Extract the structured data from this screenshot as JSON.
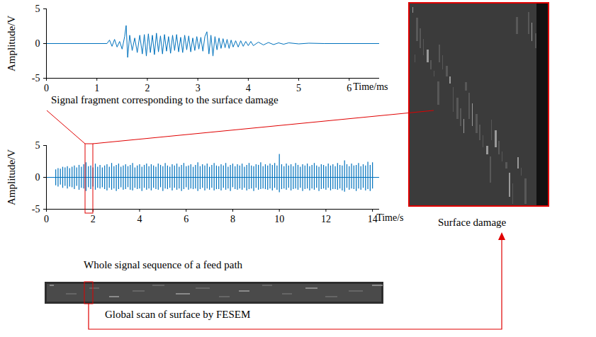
{
  "chart_data": [
    {
      "type": "line",
      "caption": "Signal fragment corresponding to the surface damage",
      "x_label": "Time/ms",
      "y_label": "Amplitude/V",
      "color": "#0072bd",
      "xlim": [
        0,
        6.6
      ],
      "xticks": [
        0,
        1,
        2,
        3,
        4,
        5,
        6
      ],
      "ylim": [
        -5,
        5
      ],
      "yticks": [
        -5,
        0,
        5
      ],
      "x": [
        0,
        1.2,
        1.25,
        1.3,
        1.35,
        1.4,
        1.45,
        1.5,
        1.55,
        1.58,
        1.61,
        1.65,
        1.7,
        1.75,
        1.8,
        1.85,
        1.9,
        1.94,
        1.98,
        2.02,
        2.06,
        2.1,
        2.14,
        2.18,
        2.22,
        2.26,
        2.3,
        2.34,
        2.38,
        2.42,
        2.46,
        2.5,
        2.54,
        2.58,
        2.62,
        2.66,
        2.7,
        2.74,
        2.78,
        2.82,
        2.86,
        2.9,
        2.94,
        2.98,
        3.02,
        3.06,
        3.1,
        3.14,
        3.18,
        3.22,
        3.26,
        3.3,
        3.34,
        3.38,
        3.42,
        3.46,
        3.5,
        3.54,
        3.58,
        3.62,
        3.66,
        3.7,
        3.75,
        3.8,
        3.85,
        3.9,
        3.95,
        4.0,
        4.05,
        4.1,
        4.2,
        4.3,
        4.4,
        4.5,
        4.6,
        4.7,
        4.8,
        5.0,
        5.2,
        5.5,
        6.6
      ],
      "values": [
        0,
        0,
        0.5,
        -0.4,
        0.6,
        -0.5,
        0.3,
        -0.8,
        1.0,
        2.6,
        -2.0,
        1.2,
        -1.0,
        0.8,
        -1.3,
        1.2,
        -1.5,
        1.3,
        -1.8,
        1.4,
        -1.3,
        1.2,
        -1.6,
        1.5,
        -1.2,
        1.1,
        -1.5,
        1.3,
        -1.1,
        1.0,
        -1.4,
        1.2,
        -1.0,
        1.3,
        -1.2,
        0.9,
        -1.3,
        1.2,
        -0.9,
        1.1,
        -1.2,
        0.8,
        -1.0,
        1.0,
        -0.8,
        0.9,
        -1.1,
        1.0,
        1.7,
        -1.5,
        1.2,
        -1.8,
        1.0,
        -0.9,
        0.8,
        -0.7,
        0.7,
        -0.6,
        0.6,
        -0.7,
        0.5,
        -0.5,
        0.4,
        -0.5,
        0.4,
        -0.4,
        0.3,
        -0.3,
        0.3,
        -0.3,
        0.2,
        -0.2,
        0.15,
        -0.15,
        0.1,
        -0.1,
        0.1,
        -0.05,
        0.05,
        0,
        0
      ]
    },
    {
      "type": "spikes",
      "caption": "Whole signal sequence of a feed path",
      "x_label": "Time/s",
      "y_label": "Amplitude/V",
      "color": "#0072bd",
      "xlim": [
        0,
        14.3
      ],
      "xticks": [
        0,
        2,
        4,
        6,
        8,
        10,
        12,
        14
      ],
      "ylim": [
        -5,
        5
      ],
      "yticks": [
        -5,
        0,
        5
      ],
      "x": [
        0.4,
        0.5,
        0.6,
        0.7,
        0.8,
        0.9,
        1.0,
        1.1,
        1.2,
        1.3,
        1.4,
        1.5,
        1.6,
        1.7,
        1.8,
        1.9,
        2.0,
        2.1,
        2.2,
        2.3,
        2.4,
        2.5,
        2.6,
        2.7,
        2.8,
        2.9,
        3.0,
        3.1,
        3.2,
        3.3,
        3.4,
        3.5,
        3.6,
        3.7,
        3.8,
        3.9,
        4.0,
        4.1,
        4.2,
        4.3,
        4.4,
        4.5,
        4.6,
        4.7,
        4.8,
        4.9,
        5.0,
        5.1,
        5.2,
        5.3,
        5.4,
        5.5,
        5.6,
        5.7,
        5.8,
        5.9,
        6.0,
        6.1,
        6.2,
        6.3,
        6.4,
        6.5,
        6.6,
        6.7,
        6.8,
        6.9,
        7.0,
        7.1,
        7.2,
        7.3,
        7.4,
        7.5,
        7.6,
        7.7,
        7.8,
        7.9,
        8.0,
        8.1,
        8.2,
        8.3,
        8.4,
        8.5,
        8.6,
        8.7,
        8.8,
        8.9,
        9.0,
        9.1,
        9.2,
        9.3,
        9.4,
        9.5,
        9.6,
        9.7,
        9.8,
        9.9,
        10.0,
        10.1,
        10.2,
        10.3,
        10.4,
        10.5,
        10.6,
        10.7,
        10.8,
        10.9,
        11.0,
        11.1,
        11.2,
        11.3,
        11.4,
        11.5,
        11.6,
        11.7,
        11.8,
        11.9,
        12.0,
        12.1,
        12.2,
        12.3,
        12.4,
        12.5,
        12.6,
        12.7,
        12.8,
        12.9,
        13.0,
        13.1,
        13.2,
        13.3,
        13.4,
        13.5,
        13.6,
        13.7,
        13.8,
        13.9,
        14.0
      ],
      "ymax": [
        1.2,
        1.4,
        1.3,
        1.6,
        1.5,
        1.7,
        1.4,
        1.6,
        1.8,
        1.5,
        1.9,
        1.6,
        2.0,
        2.3,
        1.7,
        1.8,
        1.5,
        2.1,
        1.6,
        1.9,
        1.5,
        1.8,
        2.0,
        1.6,
        2.2,
        1.7,
        1.9,
        2.1,
        1.6,
        1.8,
        2.0,
        1.7,
        1.9,
        2.2,
        1.5,
        1.8,
        2.0,
        1.6,
        1.9,
        2.1,
        1.7,
        2.0,
        1.8,
        1.6,
        2.1,
        1.9,
        1.7,
        2.2,
        1.8,
        1.6,
        2.0,
        1.8,
        2.1,
        1.6,
        1.9,
        2.2,
        1.7,
        1.8,
        2.0,
        1.6,
        1.9,
        2.3,
        1.7,
        2.0,
        1.8,
        2.1,
        1.6,
        1.9,
        2.2,
        1.8,
        1.7,
        2.0,
        1.8,
        2.2,
        1.6,
        1.9,
        2.1,
        1.7,
        2.0,
        1.8,
        2.1,
        1.6,
        1.9,
        2.2,
        1.8,
        1.7,
        2.0,
        1.9,
        2.3,
        1.7,
        2.0,
        1.8,
        2.1,
        1.9,
        2.2,
        1.8,
        3.6,
        2.0,
        1.7,
        2.1,
        1.8,
        2.0,
        1.7,
        2.2,
        1.9,
        1.6,
        2.0,
        1.8,
        2.1,
        1.7,
        1.9,
        2.2,
        1.8,
        1.6,
        2.0,
        1.9,
        1.7,
        2.1,
        1.8,
        2.0,
        1.7,
        2.2,
        1.9,
        1.8,
        2.6,
        2.0,
        1.7,
        2.1,
        1.8,
        1.9,
        2.2,
        1.7,
        2.0,
        1.8,
        2.4,
        1.9,
        2.3
      ],
      "ymin": [
        -1.3,
        -1.5,
        -1.2,
        -1.7,
        -1.4,
        -1.8,
        -1.5,
        -1.6,
        -1.9,
        -1.4,
        -2.0,
        -1.7,
        -1.8,
        -2.2,
        -1.6,
        -1.9,
        -1.5,
        -2.0,
        -1.7,
        -1.8,
        -1.6,
        -1.9,
        -2.1,
        -1.7,
        -2.0,
        -1.8,
        -2.2,
        -1.9,
        -1.6,
        -2.0,
        -1.9,
        -1.6,
        -2.0,
        -2.1,
        -1.7,
        -1.9,
        -1.8,
        -2.2,
        -1.7,
        -2.0,
        -1.8,
        -2.1,
        -1.7,
        -1.9,
        -2.0,
        -1.6,
        -2.2,
        -1.8,
        -1.9,
        -1.7,
        -2.1,
        -1.7,
        -2.0,
        -1.8,
        -2.2,
        -1.9,
        -1.6,
        -2.0,
        -1.8,
        -1.9,
        -1.8,
        -2.2,
        -1.9,
        -1.7,
        -2.1,
        -1.8,
        -2.0,
        -1.7,
        -2.1,
        -1.9,
        -1.9,
        -2.1,
        -1.7,
        -2.0,
        -1.8,
        -2.2,
        -1.6,
        -1.9,
        -2.0,
        -1.8,
        -2.0,
        -1.7,
        -2.1,
        -1.9,
        -1.8,
        -2.2,
        -1.7,
        -2.0,
        -1.9,
        -1.8,
        -1.9,
        -2.0,
        -1.8,
        -2.1,
        -1.7,
        -2.0,
        -2.4,
        -1.9,
        -1.8,
        -2.0,
        -1.7,
        -2.1,
        -1.9,
        -1.8,
        -2.0,
        -1.7,
        -2.2,
        -1.9,
        -1.8,
        -2.1,
        -1.8,
        -2.0,
        -1.7,
        -2.2,
        -1.9,
        -1.8,
        -2.0,
        -1.7,
        -2.1,
        -1.9,
        -1.9,
        -2.0,
        -1.8,
        -2.1,
        -2.3,
        -1.7,
        -2.0,
        -1.8,
        -1.9,
        -2.2,
        -1.8,
        -2.0,
        -1.7,
        -2.1,
        -1.9,
        -2.2,
        -1.8
      ]
    }
  ],
  "images": {
    "strip_caption": "Global scan of surface by FESEM",
    "detail_caption": "Surface damage"
  }
}
